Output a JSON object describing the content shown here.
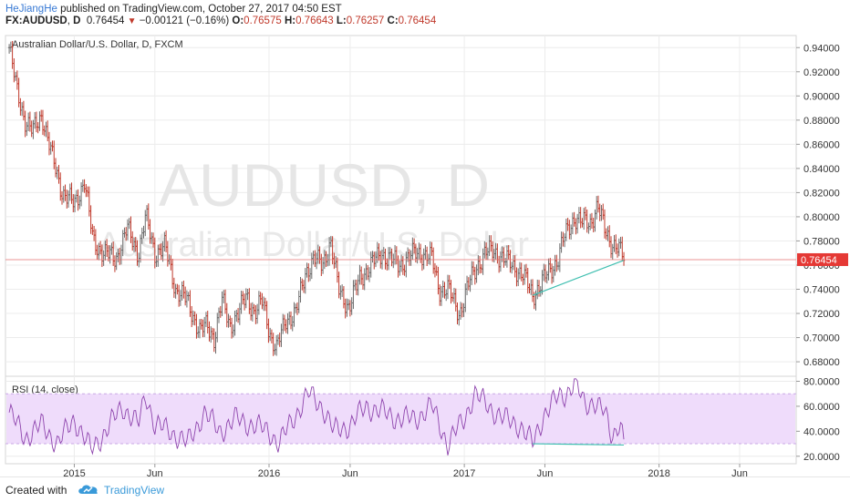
{
  "header": {
    "author": "HeJiangHe",
    "published": " published on TradingView.com, October 27, 2017 04:50 EST",
    "symbol": "FX:AUDUSD",
    "interval": "D",
    "last": "0.76454",
    "change": "−0.00121 (−0.16%)",
    "ohlc": [
      {
        "label": "O:",
        "value": "0.76575"
      },
      {
        "label": "H:",
        "value": "0.76643"
      },
      {
        "label": "L:",
        "value": "0.76257"
      },
      {
        "label": "C:",
        "value": "0.76454"
      }
    ]
  },
  "footer": {
    "created_with": "Created with",
    "brand": "TradingView"
  },
  "colors": {
    "up": "#6b6b6b",
    "down": "#c0392b",
    "price_line": "#e57373",
    "price_tag": "#e53935",
    "trendline": "#3fbfb0",
    "rsi_line": "#8e44ad",
    "rsi_band": "#efdcfb",
    "grid": "#ececec",
    "watermark": "#e6e6e6"
  },
  "chart_data": [
    {
      "type": "line",
      "title": "Australian Dollar/U.S. Dollar, D, FXCM",
      "watermark_symbol": "AUDUSD, D",
      "watermark_name": "Australian Dollar/U.S. Dollar",
      "style": "daily bars",
      "ylim": [
        0.668,
        0.95
      ],
      "y_ticks": [
        "0.94000",
        "0.92000",
        "0.90000",
        "0.88000",
        "0.86000",
        "0.84000",
        "0.82000",
        "0.80000",
        "0.78000",
        "0.76000",
        "0.74000",
        "0.72000",
        "0.70000",
        "0.68000"
      ],
      "last_price_label": "0.76454",
      "last_price": 0.76454,
      "x_ticks": [
        "2015",
        "Jun",
        "2016",
        "Jun",
        "2017",
        "Jun",
        "2018",
        "Jun"
      ],
      "x": [
        "2014-09-01",
        "2014-09-15",
        "2014-10-01",
        "2014-10-15",
        "2014-11-01",
        "2014-11-20",
        "2014-12-10",
        "2015-01-01",
        "2015-01-20",
        "2015-02-05",
        "2015-02-25",
        "2015-03-20",
        "2015-04-10",
        "2015-05-01",
        "2015-05-15",
        "2015-06-01",
        "2015-06-20",
        "2015-07-10",
        "2015-08-01",
        "2015-08-24",
        "2015-09-07",
        "2015-09-20",
        "2015-10-05",
        "2015-10-20",
        "2015-11-05",
        "2015-11-20",
        "2015-12-05",
        "2015-12-20",
        "2016-01-05",
        "2016-01-15",
        "2016-02-01",
        "2016-02-20",
        "2016-03-10",
        "2016-03-25",
        "2016-04-10",
        "2016-04-25",
        "2016-05-10",
        "2016-05-30",
        "2016-06-20",
        "2016-07-10",
        "2016-07-30",
        "2016-08-15",
        "2016-09-01",
        "2016-09-15",
        "2016-10-01",
        "2016-10-15",
        "2016-11-01",
        "2016-11-15",
        "2016-12-01",
        "2016-12-23",
        "2017-01-10",
        "2017-01-25",
        "2017-02-10",
        "2017-02-25",
        "2017-03-15",
        "2017-04-01",
        "2017-04-20",
        "2017-05-09",
        "2017-05-25",
        "2017-06-10",
        "2017-06-25",
        "2017-07-05",
        "2017-07-15",
        "2017-07-27",
        "2017-08-10",
        "2017-08-25",
        "2017-09-08",
        "2017-09-20",
        "2017-10-01",
        "2017-10-15",
        "2017-10-27"
      ],
      "series": [
        {
          "values": [
            0.94,
            0.905,
            0.88,
            0.87,
            0.885,
            0.85,
            0.82,
            0.81,
            0.83,
            0.78,
            0.77,
            0.765,
            0.79,
            0.77,
            0.8,
            0.77,
            0.775,
            0.74,
            0.73,
            0.705,
            0.71,
            0.7,
            0.73,
            0.71,
            0.72,
            0.735,
            0.72,
            0.73,
            0.7,
            0.69,
            0.715,
            0.72,
            0.755,
            0.765,
            0.76,
            0.78,
            0.74,
            0.725,
            0.75,
            0.76,
            0.77,
            0.765,
            0.76,
            0.765,
            0.77,
            0.77,
            0.765,
            0.74,
            0.74,
            0.72,
            0.745,
            0.76,
            0.77,
            0.772,
            0.765,
            0.76,
            0.752,
            0.735,
            0.745,
            0.755,
            0.765,
            0.78,
            0.79,
            0.8,
            0.795,
            0.795,
            0.81,
            0.79,
            0.78,
            0.775,
            0.765
          ]
        }
      ],
      "trendline": {
        "from": {
          "x": "2017-05-09",
          "y": 0.735
        },
        "to": {
          "x": "2017-10-27",
          "y": 0.764
        }
      }
    },
    {
      "type": "line",
      "title": "RSI (14, close)",
      "ylim": [
        14,
        84
      ],
      "y_ticks": [
        "80.0000",
        "60.0000",
        "40.0000",
        "20.0000"
      ],
      "band": [
        30,
        70
      ],
      "x_ticks": [
        "2015",
        "Jun",
        "2016",
        "Jun",
        "2017",
        "Jun",
        "2018",
        "Jun"
      ],
      "series": [
        {
          "name": "RSI",
          "x": [
            "2014-09-01",
            "2014-10-01",
            "2014-11-01",
            "2014-12-01",
            "2015-01-01",
            "2015-02-01",
            "2015-03-01",
            "2015-04-01",
            "2015-05-01",
            "2015-05-15",
            "2015-06-01",
            "2015-07-01",
            "2015-08-01",
            "2015-09-01",
            "2015-10-01",
            "2015-11-01",
            "2015-12-01",
            "2016-01-01",
            "2016-01-20",
            "2016-02-15",
            "2016-03-15",
            "2016-04-10",
            "2016-05-01",
            "2016-06-01",
            "2016-07-01",
            "2016-08-01",
            "2016-09-01",
            "2016-10-01",
            "2016-11-01",
            "2016-12-01",
            "2017-01-01",
            "2017-01-20",
            "2017-02-15",
            "2017-03-15",
            "2017-04-15",
            "2017-05-09",
            "2017-06-01",
            "2017-06-20",
            "2017-07-10",
            "2017-07-27",
            "2017-08-15",
            "2017-09-01",
            "2017-09-20",
            "2017-10-05",
            "2017-10-20",
            "2017-10-27"
          ],
          "values": [
            55,
            35,
            45,
            30,
            50,
            25,
            40,
            60,
            45,
            70,
            45,
            40,
            30,
            55,
            40,
            50,
            45,
            40,
            30,
            50,
            70,
            60,
            40,
            45,
            60,
            55,
            50,
            50,
            60,
            30,
            50,
            70,
            60,
            50,
            45,
            30,
            55,
            65,
            70,
            80,
            60,
            65,
            55,
            35,
            50,
            30
          ]
        }
      ],
      "trendline": {
        "from": {
          "x": "2017-05-09",
          "y": 30
        },
        "to": {
          "x": "2017-10-27",
          "y": 29
        }
      }
    }
  ]
}
